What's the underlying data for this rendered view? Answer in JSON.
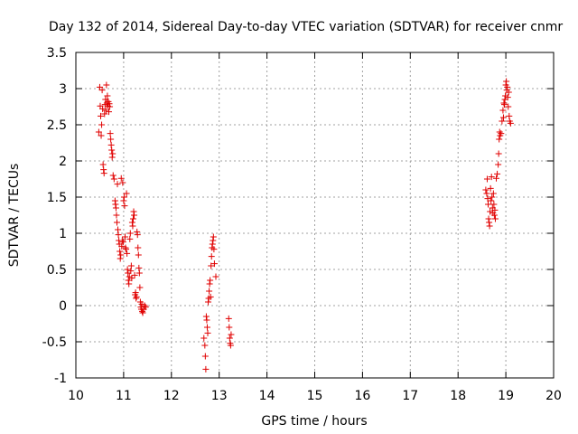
{
  "chart_data": {
    "type": "scatter",
    "title": "Day 132 of 2014, Sidereal Day-to-day VTEC variation (SDTVAR) for receiver cnmr",
    "xlabel": "GPS time / hours",
    "ylabel": "SDTVAR / TECUs",
    "xlim": [
      10,
      20
    ],
    "ylim": [
      -1,
      3.5
    ],
    "xticks": [
      "10",
      "11",
      "12",
      "13",
      "14",
      "15",
      "16",
      "17",
      "18",
      "19",
      "20"
    ],
    "yticks": [
      "-1",
      "-0.5",
      "0",
      "0.5",
      "1",
      "1.5",
      "2",
      "2.5",
      "3",
      "3.5"
    ],
    "grid": true,
    "marker": "+",
    "color": "#e00000",
    "series": [
      {
        "name": "SDTVAR",
        "points": [
          [
            10.48,
            2.4
          ],
          [
            10.5,
            3.02
          ],
          [
            10.51,
            2.76
          ],
          [
            10.52,
            2.62
          ],
          [
            10.53,
            2.35
          ],
          [
            10.54,
            2.5
          ],
          [
            10.55,
            2.98
          ],
          [
            10.56,
            2.72
          ],
          [
            10.57,
            1.95
          ],
          [
            10.58,
            1.88
          ],
          [
            10.59,
            1.83
          ],
          [
            10.6,
            2.65
          ],
          [
            10.61,
            2.78
          ],
          [
            10.62,
            2.85
          ],
          [
            10.63,
            2.7
          ],
          [
            10.64,
            3.05
          ],
          [
            10.65,
            2.8
          ],
          [
            10.66,
            2.9
          ],
          [
            10.67,
            2.76
          ],
          [
            10.68,
            2.82
          ],
          [
            10.69,
            2.68
          ],
          [
            10.7,
            2.79
          ],
          [
            10.71,
            2.75
          ],
          [
            10.72,
            2.38
          ],
          [
            10.73,
            2.3
          ],
          [
            10.74,
            2.22
          ],
          [
            10.75,
            2.15
          ],
          [
            10.76,
            2.05
          ],
          [
            10.77,
            2.1
          ],
          [
            10.78,
            1.8
          ],
          [
            10.8,
            1.75
          ],
          [
            10.82,
            1.45
          ],
          [
            10.83,
            1.4
          ],
          [
            10.84,
            1.35
          ],
          [
            10.85,
            1.25
          ],
          [
            10.86,
            1.15
          ],
          [
            10.87,
            1.68
          ],
          [
            10.88,
            1.05
          ],
          [
            10.89,
            0.98
          ],
          [
            10.9,
            0.9
          ],
          [
            10.91,
            0.85
          ],
          [
            10.92,
            0.75
          ],
          [
            10.93,
            0.65
          ],
          [
            10.94,
            0.7
          ],
          [
            10.95,
            1.76
          ],
          [
            10.96,
            0.82
          ],
          [
            10.97,
            0.9
          ],
          [
            10.98,
            1.7
          ],
          [
            10.99,
            0.88
          ],
          [
            11.0,
            1.45
          ],
          [
            11.01,
            1.5
          ],
          [
            11.02,
            1.38
          ],
          [
            11.03,
            0.95
          ],
          [
            11.04,
            0.8
          ],
          [
            11.05,
            0.78
          ],
          [
            11.06,
            1.55
          ],
          [
            11.07,
            0.72
          ],
          [
            11.08,
            0.5
          ],
          [
            11.09,
            0.45
          ],
          [
            11.1,
            0.35
          ],
          [
            11.11,
            0.3
          ],
          [
            11.12,
            0.4
          ],
          [
            11.13,
            0.92
          ],
          [
            11.14,
            1.0
          ],
          [
            11.15,
            0.48
          ],
          [
            11.16,
            0.55
          ],
          [
            11.17,
            0.38
          ],
          [
            11.18,
            1.15
          ],
          [
            11.19,
            1.1
          ],
          [
            11.2,
            1.2
          ],
          [
            11.21,
            1.3
          ],
          [
            11.22,
            1.25
          ],
          [
            11.23,
            0.42
          ],
          [
            11.24,
            0.15
          ],
          [
            11.25,
            0.18
          ],
          [
            11.26,
            0.1
          ],
          [
            11.27,
            0.12
          ],
          [
            11.28,
            1.02
          ],
          [
            11.29,
            0.98
          ],
          [
            11.3,
            0.8
          ],
          [
            11.31,
            0.7
          ],
          [
            11.32,
            0.52
          ],
          [
            11.33,
            0.45
          ],
          [
            11.34,
            0.25
          ],
          [
            11.35,
            0.05
          ],
          [
            11.36,
            -0.02
          ],
          [
            11.37,
            -0.05
          ],
          [
            11.38,
            0.02
          ],
          [
            11.39,
            -0.08
          ],
          [
            11.4,
            -0.1
          ],
          [
            11.42,
            -0.05
          ],
          [
            11.44,
            0.0
          ],
          [
            11.46,
            -0.02
          ],
          [
            12.68,
            -0.45
          ],
          [
            12.7,
            -0.55
          ],
          [
            12.71,
            -0.7
          ],
          [
            12.72,
            -0.88
          ],
          [
            12.73,
            -0.15
          ],
          [
            12.74,
            -0.2
          ],
          [
            12.75,
            -0.3
          ],
          [
            12.76,
            -0.38
          ],
          [
            12.77,
            0.05
          ],
          [
            12.78,
            0.1
          ],
          [
            12.79,
            0.2
          ],
          [
            12.8,
            0.3
          ],
          [
            12.81,
            0.35
          ],
          [
            12.82,
            0.12
          ],
          [
            12.83,
            0.55
          ],
          [
            12.84,
            0.68
          ],
          [
            12.85,
            0.8
          ],
          [
            12.86,
            0.85
          ],
          [
            12.87,
            0.9
          ],
          [
            12.88,
            0.95
          ],
          [
            12.89,
            0.78
          ],
          [
            12.9,
            0.58
          ],
          [
            12.93,
            0.4
          ],
          [
            13.2,
            -0.18
          ],
          [
            13.21,
            -0.3
          ],
          [
            13.22,
            -0.45
          ],
          [
            13.23,
            -0.52
          ],
          [
            13.24,
            -0.55
          ],
          [
            13.25,
            -0.4
          ],
          [
            18.58,
            1.6
          ],
          [
            18.6,
            1.55
          ],
          [
            18.61,
            1.75
          ],
          [
            18.62,
            1.48
          ],
          [
            18.63,
            1.4
          ],
          [
            18.64,
            1.2
          ],
          [
            18.65,
            1.15
          ],
          [
            18.66,
            1.1
          ],
          [
            18.67,
            1.3
          ],
          [
            18.68,
            1.62
          ],
          [
            18.69,
            1.45
          ],
          [
            18.7,
            1.78
          ],
          [
            18.71,
            1.5
          ],
          [
            18.72,
            1.35
          ],
          [
            18.73,
            1.28
          ],
          [
            18.74,
            1.55
          ],
          [
            18.75,
            1.4
          ],
          [
            18.76,
            1.25
          ],
          [
            18.77,
            1.32
          ],
          [
            18.78,
            1.2
          ],
          [
            18.8,
            1.76
          ],
          [
            18.82,
            1.82
          ],
          [
            18.84,
            1.95
          ],
          [
            18.85,
            2.1
          ],
          [
            18.86,
            2.3
          ],
          [
            18.87,
            2.4
          ],
          [
            18.88,
            2.35
          ],
          [
            18.9,
            2.38
          ],
          [
            18.92,
            2.55
          ],
          [
            18.94,
            2.7
          ],
          [
            18.95,
            2.6
          ],
          [
            18.96,
            2.8
          ],
          [
            18.97,
            2.78
          ],
          [
            18.98,
            2.85
          ],
          [
            18.99,
            2.9
          ],
          [
            19.0,
            3.05
          ],
          [
            19.01,
            3.1
          ],
          [
            19.02,
            2.98
          ],
          [
            19.03,
            3.02
          ],
          [
            19.04,
            2.88
          ],
          [
            19.05,
            2.75
          ],
          [
            19.06,
            2.95
          ],
          [
            19.07,
            2.62
          ],
          [
            19.08,
            2.55
          ],
          [
            19.1,
            2.52
          ]
        ]
      }
    ]
  }
}
